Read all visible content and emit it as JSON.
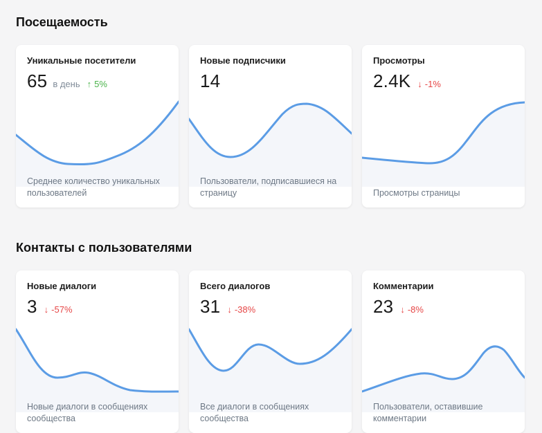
{
  "theme": {
    "accent": "#5b9ce5",
    "area": "#f4f6fa",
    "up": "#4bb34b",
    "down": "#e64646"
  },
  "sections": [
    {
      "title": "Посещаемость",
      "cards": [
        {
          "title": "Уникальные посетители",
          "value": "65",
          "suffix": "в день",
          "trend": "5%",
          "trend_dir": "up",
          "trend_icon": "arrow-up-icon",
          "description": "Среднее количество уникальных пользователей"
        },
        {
          "title": "Новые подписчики",
          "value": "14",
          "suffix": "",
          "trend": "",
          "trend_dir": "none",
          "trend_icon": "",
          "description": "Пользователи, подписавшиеся на страницу"
        },
        {
          "title": "Просмотры",
          "value": "2.4K",
          "suffix": "",
          "trend": "-1%",
          "trend_dir": "down",
          "trend_icon": "arrow-down-icon",
          "description": "Просмотры страницы"
        }
      ]
    },
    {
      "title": "Контакты с пользователями",
      "cards": [
        {
          "title": "Новые диалоги",
          "value": "3",
          "suffix": "",
          "trend": "-57%",
          "trend_dir": "down",
          "trend_icon": "arrow-down-icon",
          "description": "Новые диалоги в сообщениях сообщества"
        },
        {
          "title": "Всего диалогов",
          "value": "31",
          "suffix": "",
          "trend": "-38%",
          "trend_dir": "down",
          "trend_icon": "arrow-down-icon",
          "description": "Все диалоги в сообщениях сообщества"
        },
        {
          "title": "Комментарии",
          "value": "23",
          "suffix": "",
          "trend": "-8%",
          "trend_dir": "down",
          "trend_icon": "arrow-down-icon",
          "description": "Пользователи, оставившие комментарии"
        }
      ]
    }
  ]
}
